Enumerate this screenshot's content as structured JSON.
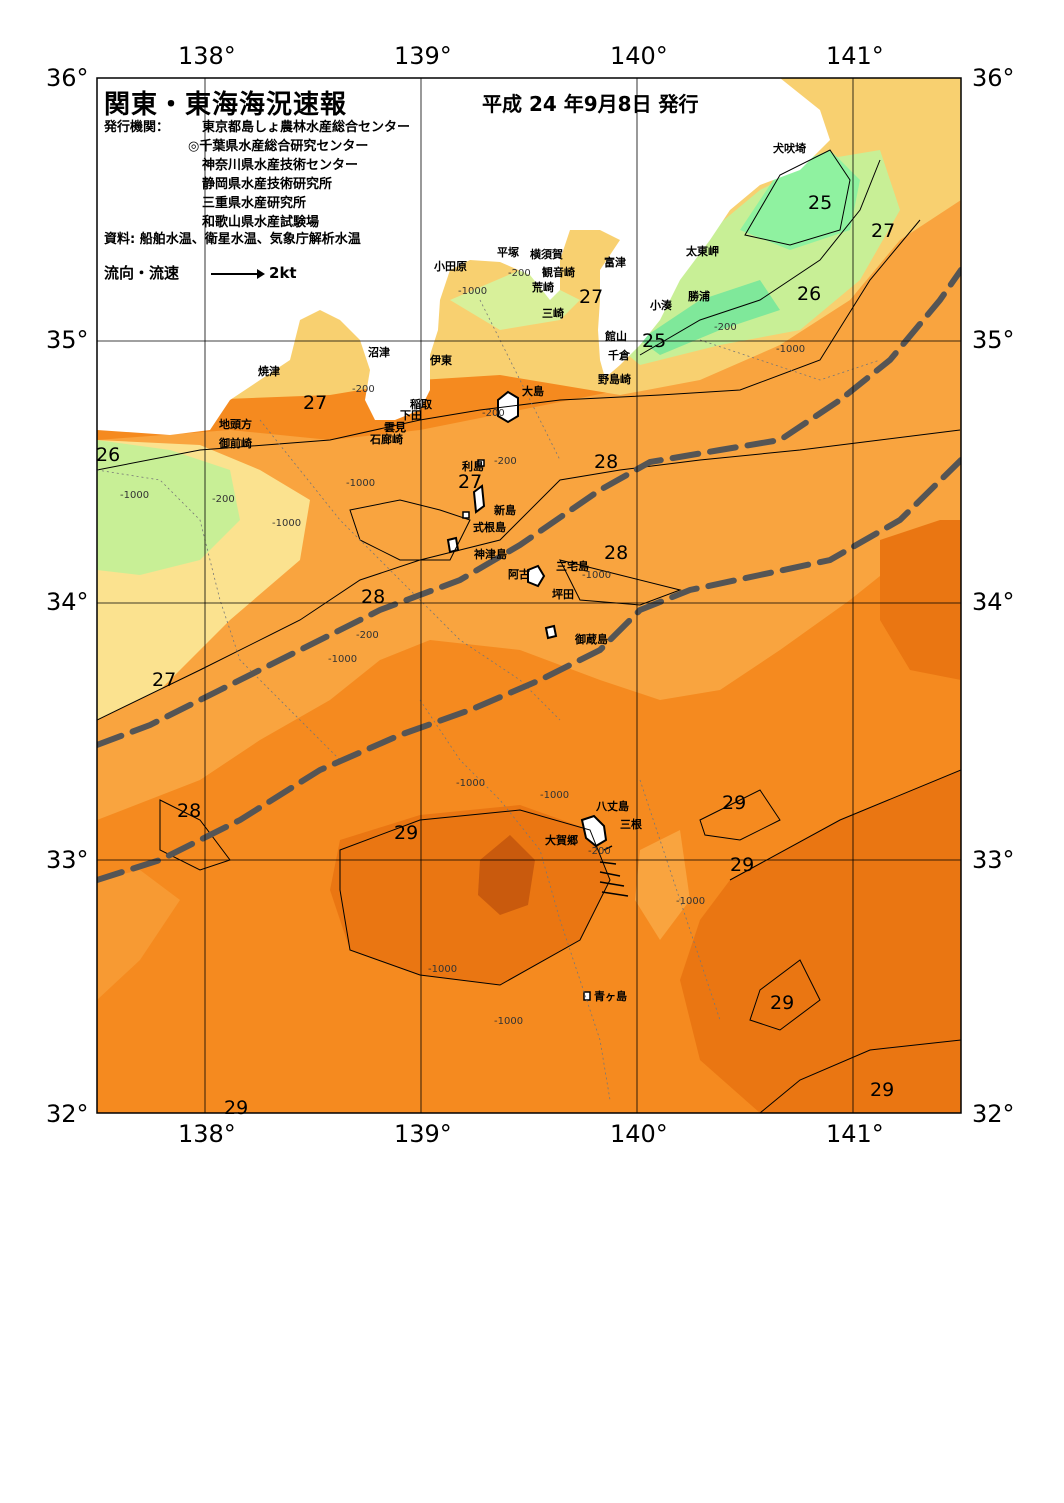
{
  "header": {
    "title": "関東・東海海況速報",
    "issue_date": "平成 24 年9月8日 発行",
    "org_label": "発行機関：",
    "orgs": [
      "東京都島しょ農林水産総合センター",
      "◎千葉県水産総合研究センター",
      "神奈川県水産技術センター",
      "静岡県水産技術研究所",
      "三重県水産研究所",
      "和歌山県水産試験場"
    ],
    "sources": "資料: 船舶水温、衛星水温、気象庁解析水温",
    "legend_label": "流向・流速",
    "legend_scale": "2kt"
  },
  "axes": {
    "lon_top": [
      "138°",
      "139°",
      "140°",
      "141°"
    ],
    "lon_bottom": [
      "138°",
      "139°",
      "140°",
      "141°"
    ],
    "lat_left": [
      "36°",
      "35°",
      "34°",
      "33°",
      "32°"
    ],
    "lat_right": [
      "36°",
      "35°",
      "34°",
      "33°",
      "32°"
    ]
  },
  "places": {
    "inubosaki": "犬吠埼",
    "taitomisaki": "太東岬",
    "katsuura": "勝浦",
    "kominato": "小湊",
    "futtsu": "富津",
    "tateyama": "館山",
    "chikura": "千倉",
    "nojimazaki": "野島崎",
    "yokosuka": "横須賀",
    "kannonzaki": "観音崎",
    "hiratsuka": "平塚",
    "arasaki": "荒崎",
    "misaki": "三崎",
    "odawara": "小田原",
    "numazu": "沼津",
    "ito": "伊東",
    "inatori": "稲取",
    "shimoda": "下田",
    "kumomi": "雲見",
    "irozaki": "石廊崎",
    "yaizu": "焼津",
    "jitokata": "地頭方",
    "omaezaki": "御前崎",
    "oshima": "大島",
    "toshima": "利島",
    "niijima": "新島",
    "shikinejima": "式根島",
    "kozushima": "神津島",
    "miyakejima": "三宅島",
    "ako": "阿古",
    "tsubota": "坪田",
    "mikurajima": "御蔵島",
    "hachijojima": "八丈島",
    "mitsune": "三根",
    "okago": "大賀郷",
    "aogashima": "青ヶ島"
  },
  "temperature_labels": [
    "25",
    "25",
    "26",
    "26",
    "27",
    "27",
    "27",
    "27",
    "27",
    "28",
    "28",
    "28",
    "28",
    "29",
    "29",
    "29",
    "29",
    "29",
    "29"
  ],
  "depth_labels": [
    "-200",
    "-1000"
  ],
  "colors": {
    "t25": "#8ff29f",
    "t25b": "#6ee890",
    "t26": "#c8f29a",
    "t27": "#f8e08a",
    "t27b": "#fbd46a",
    "t28": "#f9b04a",
    "t28b": "#f79e37",
    "t29": "#f58a1f",
    "t29b": "#e8730f",
    "t30": "#c85a0c",
    "land": "#ffffff",
    "kuroshio_axis": "#555555",
    "grid": "#000000"
  }
}
